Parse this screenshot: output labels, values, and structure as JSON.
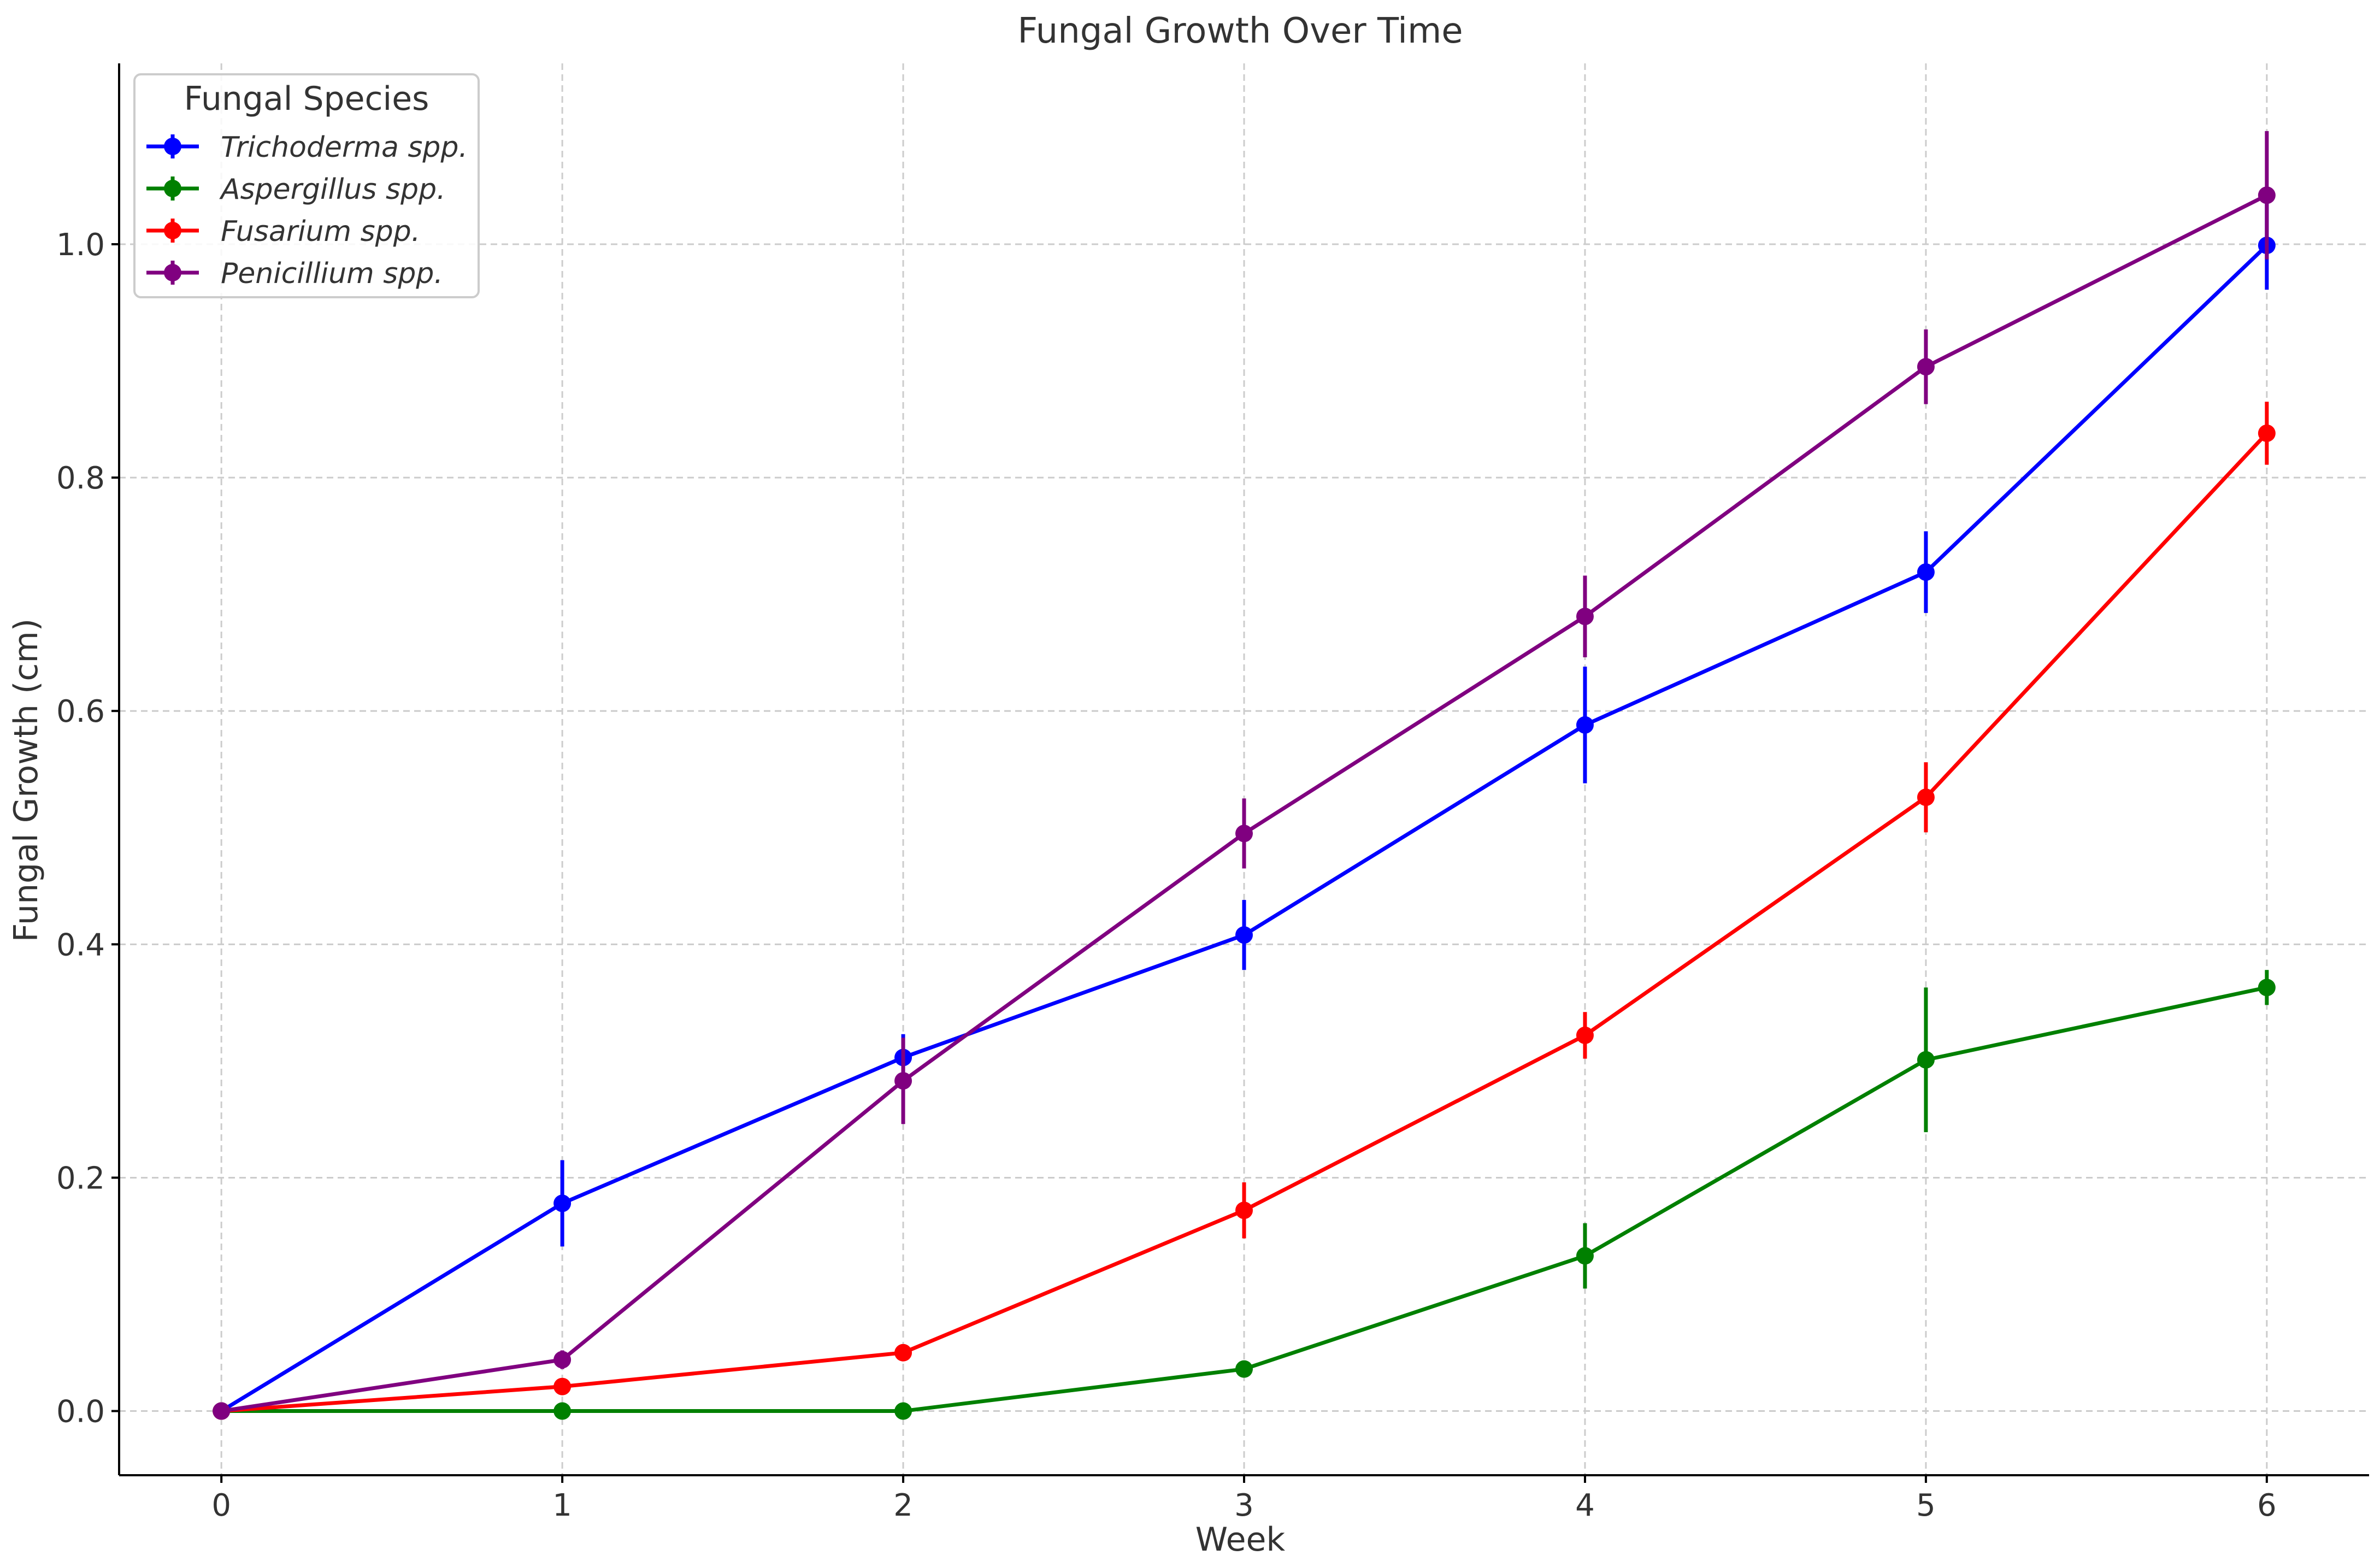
{
  "chart_data": {
    "type": "line",
    "title": "Fungal Growth Over Time",
    "xlabel": "Week",
    "ylabel": "Fungal Growth (cm)",
    "x": [
      0,
      1,
      2,
      3,
      4,
      5,
      6
    ],
    "xlim": [
      -0.3,
      6.3
    ],
    "ylim": [
      -0.055,
      1.155
    ],
    "xticks": [
      0,
      1,
      2,
      3,
      4,
      5,
      6
    ],
    "yticks": [
      0.0,
      0.2,
      0.4,
      0.6,
      0.8,
      1.0
    ],
    "ytick_labels": [
      "0.0",
      "0.2",
      "0.4",
      "0.6",
      "0.8",
      "1.0"
    ],
    "grid": true,
    "legend": {
      "title": "Fungal Species",
      "placement": "top-left"
    },
    "series": [
      {
        "name": "Trichoderma spp.",
        "color": "#0000ff",
        "values": [
          0.0,
          0.178,
          0.303,
          0.408,
          0.588,
          0.719,
          0.999
        ],
        "errors": [
          0.0,
          0.037,
          0.02,
          0.03,
          0.05,
          0.035,
          0.038
        ]
      },
      {
        "name": "Aspergillus spp.",
        "color": "#008000",
        "values": [
          0.0,
          0.0,
          0.0,
          0.036,
          0.133,
          0.301,
          0.363
        ],
        "errors": [
          0.0,
          0.0,
          0.0,
          0.0,
          0.028,
          0.062,
          0.015
        ]
      },
      {
        "name": "Fusarium spp.",
        "color": "#ff0000",
        "values": [
          0.0,
          0.021,
          0.05,
          0.172,
          0.322,
          0.526,
          0.838
        ],
        "errors": [
          0.0,
          0.0,
          0.0,
          0.024,
          0.02,
          0.03,
          0.027
        ]
      },
      {
        "name": "Penicillium spp.",
        "color": "#800080",
        "values": [
          0.0,
          0.044,
          0.283,
          0.495,
          0.681,
          0.895,
          1.042
        ],
        "errors": [
          0.0,
          0.008,
          0.037,
          0.03,
          0.035,
          0.032,
          0.055
        ]
      }
    ]
  }
}
